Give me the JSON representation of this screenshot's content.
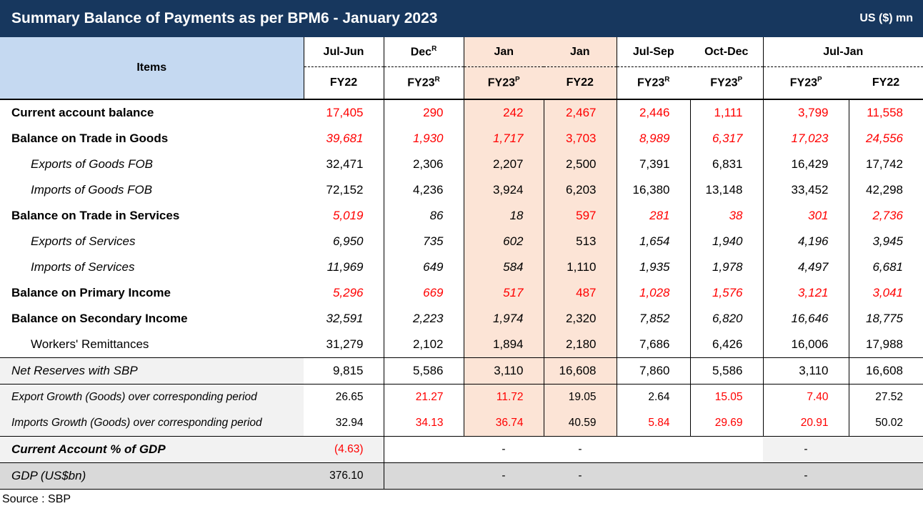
{
  "header": {
    "title": "Summary Balance of Payments as per BPM6 - January 2023",
    "unit": "US ($) mn"
  },
  "table": {
    "items_label": "Items",
    "periods": [
      {
        "text": "Jul-Jun"
      },
      {
        "text": "Dec",
        "sup": "R"
      },
      {
        "text": "Jan"
      },
      {
        "text": "Jan"
      },
      {
        "text": "Jul-Sep"
      },
      {
        "text": "Oct-Dec"
      },
      {
        "text": "Jul-Jan"
      }
    ],
    "years": [
      {
        "text": "FY22"
      },
      {
        "text": "FY23",
        "sup": "R"
      },
      {
        "text": "FY23",
        "sup": "P"
      },
      {
        "text": "FY22"
      },
      {
        "text": "FY23",
        "sup": "R"
      },
      {
        "text": "FY23",
        "sup": "P"
      },
      {
        "text": "FY23",
        "sup": "P"
      },
      {
        "text": "FY22"
      }
    ],
    "rows": [
      {
        "label": "Current account balance",
        "cells": [
          "17,405",
          "290",
          "242",
          "2,467",
          "2,446",
          "1,111",
          "3,799",
          "11,558"
        ]
      },
      {
        "label": "Balance on Trade in Goods",
        "cells": [
          "39,681",
          "1,930",
          "1,717",
          "3,703",
          "8,989",
          "6,317",
          "17,023",
          "24,556"
        ]
      },
      {
        "label": "Exports  of Goods FOB",
        "cells": [
          "32,471",
          "2,306",
          "2,207",
          "2,500",
          "7,391",
          "6,831",
          "16,429",
          "17,742"
        ]
      },
      {
        "label": "Imports  of Goods FOB",
        "cells": [
          "72,152",
          "4,236",
          "3,924",
          "6,203",
          "16,380",
          "13,148",
          "33,452",
          "42,298"
        ]
      },
      {
        "label": "Balance on Trade in Services",
        "cells": [
          "5,019",
          "86",
          "18",
          "597",
          "281",
          "38",
          "301",
          "2,736"
        ]
      },
      {
        "label": "Exports of Services",
        "cells": [
          "6,950",
          "735",
          "602",
          "513",
          "1,654",
          "1,940",
          "4,196",
          "3,945"
        ]
      },
      {
        "label": "Imports of Services",
        "cells": [
          "11,969",
          "649",
          "584",
          "1,110",
          "1,935",
          "1,978",
          "4,497",
          "6,681"
        ]
      },
      {
        "label": "Balance on Primary Income",
        "cells": [
          "5,296",
          "669",
          "517",
          "487",
          "1,028",
          "1,576",
          "3,121",
          "3,041"
        ]
      },
      {
        "label": "Balance on Secondary Income",
        "cells": [
          "32,591",
          "2,223",
          "1,974",
          "2,320",
          "7,852",
          "6,820",
          "16,646",
          "18,775"
        ]
      },
      {
        "label": "Workers' Remittances",
        "cells": [
          "31,279",
          "2,102",
          "1,894",
          "2,180",
          "7,686",
          "6,426",
          "16,006",
          "17,988"
        ]
      },
      {
        "label": "Net Reserves with SBP",
        "cells": [
          "9,815",
          "5,586",
          "3,110",
          "16,608",
          "7,860",
          "5,586",
          "3,110",
          "16,608"
        ]
      },
      {
        "label": "Export Growth (Goods) over corresponding period",
        "cells": [
          "26.65",
          "21.27",
          "11.72",
          "19.05",
          "2.64",
          "15.05",
          "7.40",
          "27.52"
        ]
      },
      {
        "label": "Imports Growth (Goods) over corresponding period",
        "cells": [
          "32.94",
          "34.13",
          "36.74",
          "40.59",
          "5.84",
          "29.69",
          "20.91",
          "50.02"
        ]
      },
      {
        "label": "Current Account % of GDP",
        "cells": [
          "(4.63)",
          null,
          "-",
          "-",
          null,
          null,
          "-",
          null
        ]
      },
      {
        "label": "GDP (US$bn)",
        "cells": [
          "376.10",
          null,
          "-",
          "-",
          null,
          null,
          "-",
          null
        ]
      }
    ]
  },
  "source": "Source : SBP"
}
